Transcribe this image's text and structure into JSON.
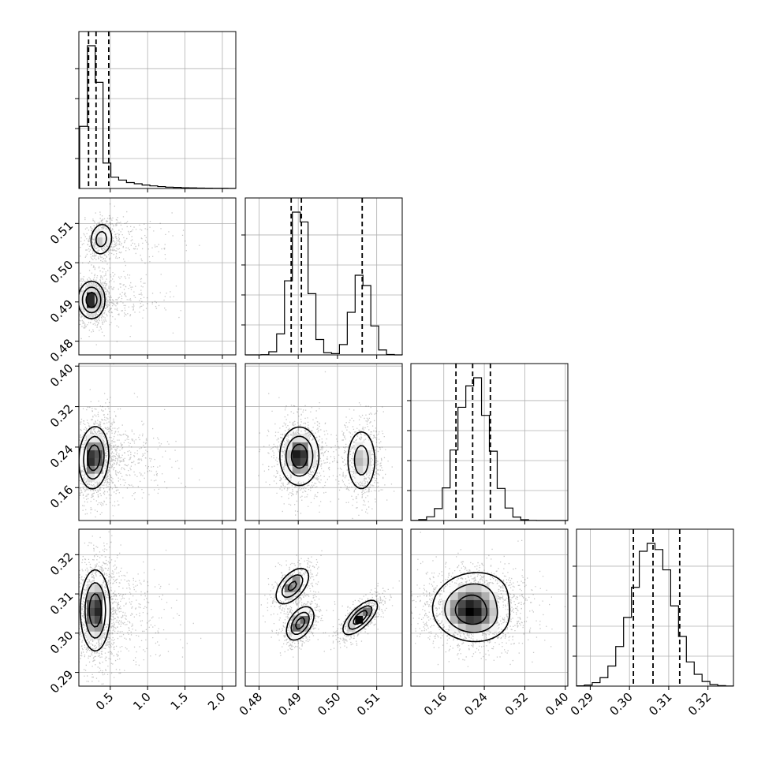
{
  "chart_data": {
    "type": "corner",
    "parameters": [
      {
        "range": [
          0.08,
          2.18
        ],
        "tick_values": [
          0.5,
          1.0,
          1.5,
          2.0
        ],
        "tick_labels": [
          "0.5",
          "1.0",
          "1.5",
          "2.0"
        ],
        "quantiles": [
          0.21,
          0.31,
          0.48
        ],
        "mixture": [
          {
            "mean": 0.27,
            "sd": 0.09,
            "weight": 0.78,
            "tail": 0.35
          }
        ]
      },
      {
        "range": [
          0.4765,
          0.5165
        ],
        "tick_values": [
          0.48,
          0.49,
          0.5,
          0.51
        ],
        "tick_labels": [
          "0.48",
          "0.49",
          "0.50",
          "0.51"
        ],
        "quantiles": [
          0.4882,
          0.4908,
          0.5063
        ],
        "mixture": [
          {
            "mean": 0.4903,
            "sd": 0.0024,
            "weight": 0.63
          },
          {
            "mean": 0.5061,
            "sd": 0.0022,
            "weight": 0.37
          }
        ]
      },
      {
        "range": [
          0.095,
          0.405
        ],
        "tick_values": [
          0.16,
          0.24,
          0.32,
          0.4
        ],
        "tick_labels": [
          "0.16",
          "0.24",
          "0.32",
          "0.40"
        ],
        "quantiles": [
          0.184,
          0.217,
          0.252
        ],
        "mixture": [
          {
            "mean": 0.219,
            "sd": 0.031,
            "weight": 1.0
          }
        ]
      },
      {
        "range": [
          0.2865,
          0.3265
        ],
        "tick_values": [
          0.29,
          0.3,
          0.31,
          0.32
        ],
        "tick_labels": [
          "0.29",
          "0.30",
          "0.31",
          "0.32"
        ],
        "quantiles": [
          0.301,
          0.306,
          0.3128
        ],
        "mixture": [
          {
            "mean": 0.3058,
            "sd": 0.0052,
            "weight": 1.0
          }
        ]
      }
    ],
    "density_blobs": [
      {
        "row": 1,
        "col": 0,
        "blobs": [
          {
            "cx": 0.25,
            "cy": 0.4905,
            "sx": 0.09,
            "sy": 0.0024,
            "rho": 0.0,
            "w": 0.63
          },
          {
            "cx": 0.38,
            "cy": 0.506,
            "sx": 0.08,
            "sy": 0.0022,
            "rho": 0.1,
            "w": 0.37
          }
        ]
      },
      {
        "row": 2,
        "col": 0,
        "blobs": [
          {
            "cx": 0.28,
            "cy": 0.219,
            "sx": 0.1,
            "sy": 0.031,
            "rho": 0.1,
            "w": 1.0
          }
        ]
      },
      {
        "row": 2,
        "col": 1,
        "blobs": [
          {
            "cx": 0.4903,
            "cy": 0.222,
            "sx": 0.0025,
            "sy": 0.029,
            "rho": 0.0,
            "w": 0.63
          },
          {
            "cx": 0.5061,
            "cy": 0.214,
            "sx": 0.002,
            "sy": 0.033,
            "rho": 0.0,
            "w": 0.37
          }
        ]
      },
      {
        "row": 3,
        "col": 0,
        "blobs": [
          {
            "cx": 0.3,
            "cy": 0.3058,
            "sx": 0.1,
            "sy": 0.0052,
            "rho": 0.0,
            "w": 1.0
          }
        ]
      },
      {
        "row": 3,
        "col": 1,
        "blobs": [
          {
            "cx": 0.4885,
            "cy": 0.312,
            "sx": 0.0022,
            "sy": 0.0024,
            "rho": 0.55,
            "w": 0.3
          },
          {
            "cx": 0.4905,
            "cy": 0.3025,
            "sx": 0.0018,
            "sy": 0.0022,
            "rho": 0.45,
            "w": 0.33
          },
          {
            "cx": 0.5058,
            "cy": 0.304,
            "sx": 0.0022,
            "sy": 0.0022,
            "rho": 0.7,
            "w": 0.37
          }
        ]
      },
      {
        "row": 3,
        "col": 2,
        "blobs": [
          {
            "cx": 0.215,
            "cy": 0.3045,
            "sx": 0.038,
            "sy": 0.0035,
            "rho": -0.1,
            "w": 0.65
          },
          {
            "cx": 0.22,
            "cy": 0.31,
            "sx": 0.04,
            "sy": 0.0035,
            "rho": 0.1,
            "w": 0.35
          }
        ]
      }
    ],
    "colors": {
      "line": "#000000",
      "grid": "#b0b0b0",
      "scatter": "#000000"
    }
  }
}
